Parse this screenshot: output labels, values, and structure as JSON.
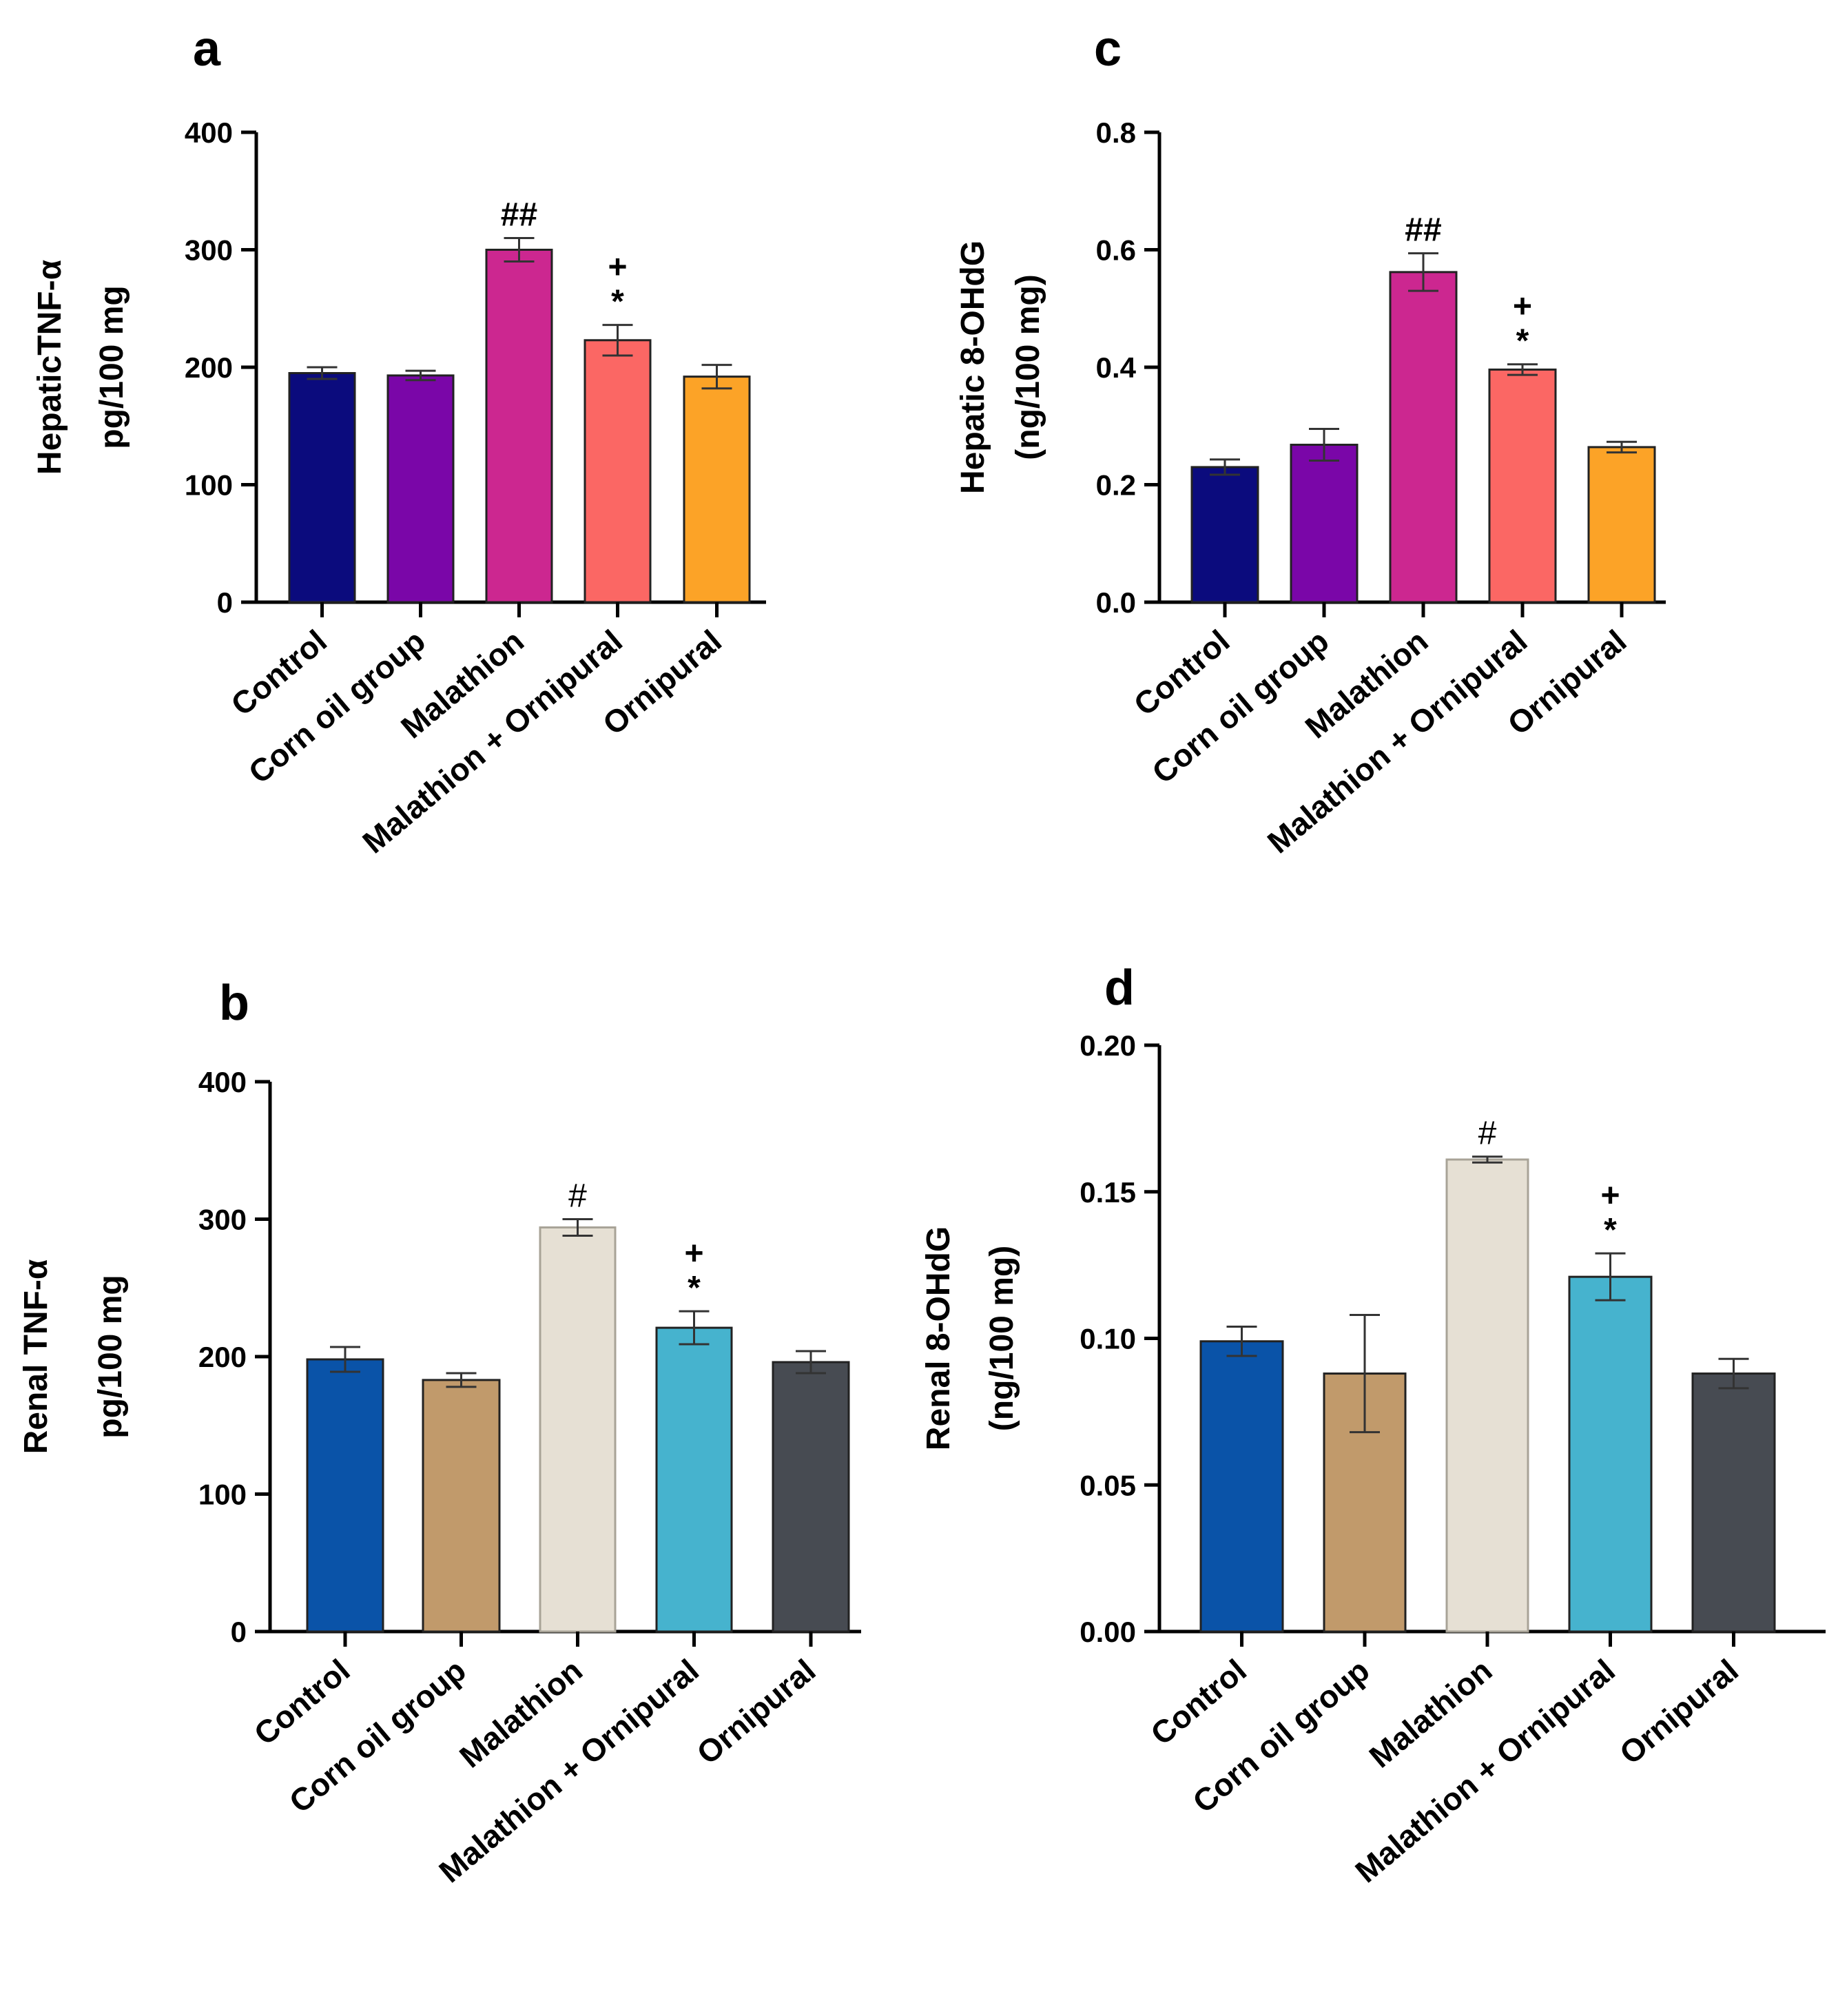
{
  "chart_data": [
    {
      "panel": "a",
      "type": "bar",
      "ylabel": [
        "HepaticTNF-α",
        "pg/100 mg"
      ],
      "ylim": [
        0,
        400
      ],
      "yticks": [
        "0",
        "100",
        "200",
        "300",
        "400"
      ],
      "categories": [
        "Control",
        "Corn oil group",
        "Malathion",
        "Malathion + Ornipural",
        "Ornipural"
      ],
      "values": [
        195,
        193,
        300,
        223,
        192
      ],
      "errors": [
        5,
        4,
        10,
        13,
        10
      ],
      "colors": [
        "#0b0b7d",
        "#7a06a8",
        "#cc2790",
        "#fb6764",
        "#fca327"
      ],
      "annotations": [
        [],
        [],
        [
          "##"
        ],
        [
          "+",
          "*"
        ],
        []
      ]
    },
    {
      "panel": "b",
      "type": "bar",
      "ylabel": [
        "Renal TNF-α",
        "pg/100 mg"
      ],
      "ylim": [
        0,
        400
      ],
      "yticks": [
        "0",
        "100",
        "200",
        "300",
        "400"
      ],
      "categories": [
        "Control",
        "Corn oil group",
        "Malathion",
        "Malathion + Ornipural",
        "Ornipural"
      ],
      "values": [
        198,
        183,
        294,
        221,
        196
      ],
      "errors": [
        9,
        5,
        6,
        12,
        8
      ],
      "colors": [
        "#0a53a8",
        "#c19a6b",
        "#e6e0d4",
        "#46b3ce",
        "#474b52"
      ],
      "annotations": [
        [],
        [],
        [
          "#"
        ],
        [
          "+",
          "*"
        ],
        []
      ]
    },
    {
      "panel": "c",
      "type": "bar",
      "ylabel": [
        "Hepatic 8-OHdG",
        "(ng/100 mg)"
      ],
      "ylim": [
        0,
        0.8
      ],
      "yticks": [
        "0.0",
        "0.2",
        "0.4",
        "0.6",
        "0.8"
      ],
      "categories": [
        "Control",
        "Corn oil group",
        "Malathion",
        "Malathion + Ornipural",
        "Ornipural"
      ],
      "values": [
        0.23,
        0.268,
        0.562,
        0.396,
        0.264
      ],
      "errors": [
        0.013,
        0.027,
        0.032,
        0.009,
        0.009
      ],
      "colors": [
        "#0b0b7d",
        "#7a06a8",
        "#cc2790",
        "#fb6764",
        "#fca327"
      ],
      "annotations": [
        [],
        [],
        [
          "##"
        ],
        [
          "+",
          "*"
        ],
        []
      ]
    },
    {
      "panel": "d",
      "type": "bar",
      "ylabel": [
        "Renal 8-OHdG",
        "(ng/100 mg)"
      ],
      "ylim": [
        0,
        0.2
      ],
      "yticks": [
        "0.00",
        "0.05",
        "0.10",
        "0.15",
        "0.20"
      ],
      "categories": [
        "Control",
        "Corn oil group",
        "Malathion",
        "Malathion + Ornipural",
        "Ornipural"
      ],
      "values": [
        0.099,
        0.088,
        0.161,
        0.121,
        0.088
      ],
      "errors": [
        0.005,
        0.02,
        0.001,
        0.008,
        0.005
      ],
      "colors": [
        "#0a53a8",
        "#c19a6b",
        "#e6e0d4",
        "#46b3ce",
        "#474b52"
      ],
      "annotations": [
        [],
        [],
        [
          "#"
        ],
        [
          "+",
          "*"
        ],
        []
      ]
    }
  ]
}
